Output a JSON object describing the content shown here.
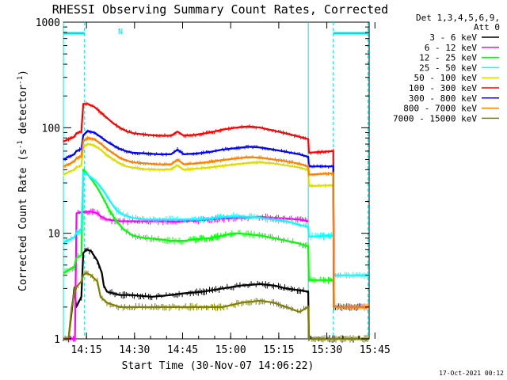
{
  "chart_data": {
    "type": "line",
    "title": "RHESSI Observing Summary Count Rates, Corrected",
    "xlabel": "Start Time (30-Nov-07 14:06:22)",
    "ylabel_main": "Corrected Count Rate (s",
    "ylabel_sup1": "-1",
    "ylabel_mid": " detector",
    "ylabel_sup2": "-1",
    "ylabel_end": ")",
    "x_range_min": [
      6.4,
      101.8
    ],
    "y_scale": "log",
    "y_range": [
      1,
      1000
    ],
    "x_ticks": [
      {
        "min": 13.6,
        "label": "14:15"
      },
      {
        "min": 28.6,
        "label": "14:30"
      },
      {
        "min": 43.6,
        "label": "14:45"
      },
      {
        "min": 58.6,
        "label": "15:00"
      },
      {
        "min": 73.6,
        "label": "15:15"
      },
      {
        "min": 88.6,
        "label": "15:30"
      },
      {
        "min": 103.6,
        "label": "15:45"
      }
    ],
    "y_ticks": [
      {
        "value": 1,
        "label": "1"
      },
      {
        "value": 10,
        "label": "10"
      },
      {
        "value": 100,
        "label": "100"
      },
      {
        "value": 1000,
        "label": "1000"
      }
    ],
    "legend_header": [
      "Det 1,3,4,5,6,9,",
      "Att 0"
    ],
    "annotations": {
      "night_marker": "N",
      "timestamp": "17-Oct-2021 00:12"
    },
    "night_periods": [
      {
        "start": 6.4,
        "end": 13.0
      },
      {
        "start": 90.6,
        "end": 101.4
      }
    ],
    "dashed_markers": [
      13.0,
      90.6,
      101.4
    ],
    "solid_markers": [
      6.4,
      82.8
    ],
    "series": [
      {
        "name": "3 - 6 keV",
        "color": "#000000",
        "points": [
          [
            6.4,
            1.0
          ],
          [
            8.0,
            1.0
          ],
          [
            9.8,
            3.0
          ],
          [
            10.4,
            2.0
          ],
          [
            12.0,
            2.5
          ],
          [
            12.6,
            6.5
          ],
          [
            13.6,
            7.0
          ],
          [
            15.0,
            6.8
          ],
          [
            17.0,
            5.5
          ],
          [
            18.4,
            4.2
          ],
          [
            19.0,
            3.2
          ],
          [
            20.0,
            2.8
          ],
          [
            24.0,
            2.6
          ],
          [
            28.0,
            2.6
          ],
          [
            34.0,
            2.5
          ],
          [
            40.0,
            2.6
          ],
          [
            44.0,
            2.7
          ],
          [
            50.0,
            2.8
          ],
          [
            56.0,
            3.0
          ],
          [
            62.0,
            3.2
          ],
          [
            68.0,
            3.3
          ],
          [
            72.0,
            3.2
          ],
          [
            76.0,
            3.0
          ],
          [
            82.8,
            2.8
          ],
          [
            83.0,
            1.0
          ],
          [
            101.8,
            1.0
          ]
        ]
      },
      {
        "name": "6 - 12 keV",
        "color": "#ff00ff",
        "points": [
          [
            6.4,
            1.0
          ],
          [
            10.0,
            1.0
          ],
          [
            10.5,
            15.5
          ],
          [
            13.0,
            16.0
          ],
          [
            15.0,
            16.0
          ],
          [
            17.0,
            15.5
          ],
          [
            18.0,
            14.5
          ],
          [
            20.0,
            13.5
          ],
          [
            24.0,
            13.0
          ],
          [
            30.0,
            13.0
          ],
          [
            36.0,
            13.0
          ],
          [
            42.0,
            12.9
          ],
          [
            48.0,
            13.2
          ],
          [
            56.0,
            13.8
          ],
          [
            62.0,
            14.0
          ],
          [
            68.0,
            14.3
          ],
          [
            72.0,
            14.0
          ],
          [
            76.0,
            13.8
          ],
          [
            80.0,
            13.5
          ],
          [
            82.8,
            13.0
          ]
        ]
      },
      {
        "name": "12 - 25 keV",
        "color": "#00ff00",
        "points": [
          [
            6.4,
            4.2
          ],
          [
            9.8,
            4.8
          ],
          [
            10.4,
            5.8
          ],
          [
            12.0,
            6.2
          ],
          [
            12.6,
            40.0
          ],
          [
            13.4,
            38.0
          ],
          [
            15.0,
            33.0
          ],
          [
            17.0,
            27.0
          ],
          [
            19.0,
            21.0
          ],
          [
            21.0,
            16.0
          ],
          [
            23.0,
            13.0
          ],
          [
            25.0,
            11.0
          ],
          [
            28.0,
            9.5
          ],
          [
            32.0,
            9.0
          ],
          [
            36.0,
            8.8
          ],
          [
            40.0,
            8.5
          ],
          [
            44.0,
            8.5
          ],
          [
            48.0,
            8.8
          ],
          [
            52.0,
            9.0
          ],
          [
            56.0,
            9.5
          ],
          [
            60.0,
            10.0
          ],
          [
            64.0,
            9.8
          ],
          [
            68.0,
            9.5
          ],
          [
            72.0,
            9.0
          ],
          [
            76.0,
            8.5
          ],
          [
            80.0,
            8.0
          ],
          [
            82.8,
            7.5
          ],
          [
            83.0,
            3.6
          ],
          [
            90.6,
            3.6
          ],
          [
            90.8,
            2.0
          ],
          [
            101.8,
            2.0
          ]
        ]
      },
      {
        "name": "25 - 50 keV",
        "color": "#00ffff",
        "points": [
          [
            6.4,
            8.2
          ],
          [
            9.8,
            9.2
          ],
          [
            10.4,
            10.0
          ],
          [
            12.0,
            11.0
          ],
          [
            12.6,
            38.0
          ],
          [
            13.8,
            36.0
          ],
          [
            15.0,
            34.0
          ],
          [
            17.0,
            30.0
          ],
          [
            19.0,
            25.0
          ],
          [
            21.0,
            20.0
          ],
          [
            23.0,
            16.5
          ],
          [
            25.0,
            15.0
          ],
          [
            28.0,
            14.0
          ],
          [
            32.0,
            13.5
          ],
          [
            36.0,
            13.5
          ],
          [
            40.0,
            13.5
          ],
          [
            44.0,
            13.5
          ],
          [
            48.0,
            13.5
          ],
          [
            52.0,
            13.8
          ],
          [
            56.0,
            14.2
          ],
          [
            60.0,
            14.5
          ],
          [
            64.0,
            14.3
          ],
          [
            68.0,
            14.0
          ],
          [
            72.0,
            13.5
          ],
          [
            76.0,
            13.0
          ],
          [
            80.0,
            12.0
          ],
          [
            82.8,
            11.5
          ],
          [
            83.0,
            9.3
          ],
          [
            90.6,
            9.5
          ],
          [
            90.8,
            4.0
          ],
          [
            101.8,
            4.0
          ]
        ]
      },
      {
        "name": "50 - 100 keV",
        "color": "#dddd00",
        "points": [
          [
            6.4,
            36.0
          ],
          [
            8.0,
            38.0
          ],
          [
            9.8,
            40.0
          ],
          [
            10.4,
            42.0
          ],
          [
            12.0,
            44.0
          ],
          [
            12.6,
            65.0
          ],
          [
            14.0,
            70.0
          ],
          [
            16.0,
            68.0
          ],
          [
            18.0,
            62.0
          ],
          [
            20.0,
            55.0
          ],
          [
            22.0,
            50.0
          ],
          [
            24.0,
            46.0
          ],
          [
            26.0,
            43.0
          ],
          [
            28.0,
            42.0
          ],
          [
            32.0,
            40.5
          ],
          [
            36.0,
            40.0
          ],
          [
            40.0,
            40.5
          ],
          [
            42.0,
            44.0
          ],
          [
            44.0,
            40.0
          ],
          [
            48.0,
            41.0
          ],
          [
            52.0,
            42.0
          ],
          [
            56.0,
            43.5
          ],
          [
            60.0,
            45.0
          ],
          [
            64.0,
            46.5
          ],
          [
            68.0,
            47.0
          ],
          [
            72.0,
            46.0
          ],
          [
            76.0,
            44.0
          ],
          [
            80.0,
            42.0
          ],
          [
            82.8,
            40.0
          ],
          [
            83.0,
            28.0
          ],
          [
            90.6,
            28.5
          ],
          [
            90.8,
            2.0
          ],
          [
            101.8,
            2.0
          ]
        ]
      },
      {
        "name": "100 - 300 keV",
        "color": "#ff0000",
        "points": [
          [
            6.4,
            74.0
          ],
          [
            8.0,
            78.0
          ],
          [
            9.8,
            82.0
          ],
          [
            10.4,
            88.0
          ],
          [
            12.0,
            92.0
          ],
          [
            12.6,
            168.0
          ],
          [
            14.0,
            168.0
          ],
          [
            16.0,
            158.0
          ],
          [
            18.0,
            140.0
          ],
          [
            20.0,
            124.0
          ],
          [
            22.0,
            110.0
          ],
          [
            24.0,
            100.0
          ],
          [
            26.0,
            93.0
          ],
          [
            28.0,
            89.0
          ],
          [
            32.0,
            86.0
          ],
          [
            36.0,
            84.0
          ],
          [
            40.0,
            84.0
          ],
          [
            42.0,
            92.0
          ],
          [
            44.0,
            84.0
          ],
          [
            48.0,
            86.0
          ],
          [
            52.0,
            90.0
          ],
          [
            56.0,
            96.0
          ],
          [
            60.0,
            100.0
          ],
          [
            64.0,
            103.0
          ],
          [
            68.0,
            100.0
          ],
          [
            72.0,
            94.0
          ],
          [
            76.0,
            88.0
          ],
          [
            80.0,
            82.0
          ],
          [
            82.8,
            78.0
          ],
          [
            83.0,
            58.0
          ],
          [
            90.6,
            60.0
          ],
          [
            90.8,
            2.0
          ],
          [
            101.8,
            2.0
          ]
        ]
      },
      {
        "name": "300 - 800 keV",
        "color": "#0000ff",
        "points": [
          [
            6.4,
            50.0
          ],
          [
            8.0,
            53.0
          ],
          [
            9.8,
            56.0
          ],
          [
            10.4,
            60.0
          ],
          [
            12.0,
            63.0
          ],
          [
            12.6,
            85.0
          ],
          [
            14.0,
            93.0
          ],
          [
            16.0,
            90.0
          ],
          [
            18.0,
            82.0
          ],
          [
            20.0,
            74.0
          ],
          [
            22.0,
            68.0
          ],
          [
            24.0,
            63.0
          ],
          [
            26.0,
            60.0
          ],
          [
            28.0,
            58.0
          ],
          [
            32.0,
            57.0
          ],
          [
            36.0,
            56.0
          ],
          [
            40.0,
            56.0
          ],
          [
            42.0,
            62.0
          ],
          [
            44.0,
            56.0
          ],
          [
            48.0,
            57.0
          ],
          [
            52.0,
            59.0
          ],
          [
            56.0,
            62.0
          ],
          [
            60.0,
            64.0
          ],
          [
            64.0,
            66.0
          ],
          [
            68.0,
            65.0
          ],
          [
            72.0,
            62.0
          ],
          [
            76.0,
            59.0
          ],
          [
            80.0,
            56.0
          ],
          [
            82.8,
            53.0
          ],
          [
            83.0,
            43.0
          ],
          [
            90.6,
            43.0
          ],
          [
            90.8,
            2.0
          ],
          [
            101.8,
            2.0
          ]
        ]
      },
      {
        "name": "800 - 7000 keV",
        "color": "#ff8000",
        "points": [
          [
            6.4,
            43.0
          ],
          [
            8.0,
            45.0
          ],
          [
            9.8,
            48.0
          ],
          [
            10.4,
            51.0
          ],
          [
            12.0,
            54.0
          ],
          [
            12.6,
            75.0
          ],
          [
            14.0,
            80.0
          ],
          [
            16.0,
            78.0
          ],
          [
            18.0,
            71.0
          ],
          [
            20.0,
            63.0
          ],
          [
            22.0,
            57.0
          ],
          [
            24.0,
            52.0
          ],
          [
            26.0,
            49.0
          ],
          [
            28.0,
            47.0
          ],
          [
            32.0,
            46.0
          ],
          [
            36.0,
            45.0
          ],
          [
            40.0,
            45.0
          ],
          [
            42.0,
            50.0
          ],
          [
            44.0,
            45.0
          ],
          [
            48.0,
            46.0
          ],
          [
            52.0,
            47.5
          ],
          [
            56.0,
            49.5
          ],
          [
            60.0,
            51.0
          ],
          [
            64.0,
            52.5
          ],
          [
            68.0,
            52.0
          ],
          [
            72.0,
            50.0
          ],
          [
            76.0,
            48.0
          ],
          [
            80.0,
            45.5
          ],
          [
            82.8,
            43.0
          ],
          [
            83.0,
            36.0
          ],
          [
            90.6,
            37.0
          ],
          [
            90.8,
            2.0
          ],
          [
            101.8,
            2.0
          ]
        ]
      },
      {
        "name": "7000 - 15000 keV",
        "color": "#808000",
        "points": [
          [
            6.4,
            1.0
          ],
          [
            8.0,
            1.0
          ],
          [
            9.0,
            2.0
          ],
          [
            10.0,
            3.0
          ],
          [
            12.0,
            3.5
          ],
          [
            12.6,
            4.0
          ],
          [
            13.6,
            4.2
          ],
          [
            15.0,
            4.0
          ],
          [
            17.0,
            3.5
          ],
          [
            18.0,
            2.5
          ],
          [
            20.0,
            2.2
          ],
          [
            24.0,
            2.0
          ],
          [
            28.0,
            2.0
          ],
          [
            34.0,
            2.0
          ],
          [
            40.0,
            2.0
          ],
          [
            44.0,
            2.0
          ],
          [
            50.0,
            2.0
          ],
          [
            56.0,
            2.0
          ],
          [
            62.0,
            2.2
          ],
          [
            68.0,
            2.3
          ],
          [
            72.0,
            2.2
          ],
          [
            76.0,
            2.0
          ],
          [
            80.0,
            1.8
          ],
          [
            82.8,
            2.0
          ],
          [
            83.0,
            1.0
          ],
          [
            101.8,
            1.0
          ]
        ]
      }
    ]
  }
}
